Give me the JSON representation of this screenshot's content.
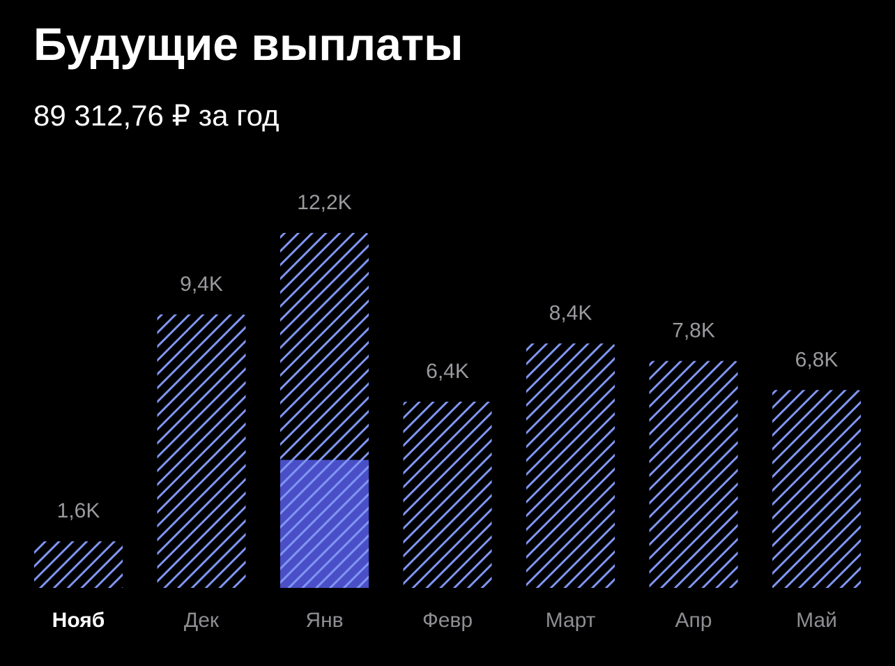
{
  "chart_data": {
    "type": "bar",
    "title": "Будущие выплаты",
    "subtitle": "89 312,76 ₽ за год",
    "categories": [
      "Нояб",
      "Дек",
      "Янв",
      "Февр",
      "Март",
      "Апр",
      "Май"
    ],
    "values": [
      1.6,
      9.4,
      12.2,
      6.4,
      8.4,
      7.8,
      6.8
    ],
    "value_labels": [
      "1,6K",
      "9,4K",
      "12,2K",
      "6,4K",
      "8,4K",
      "7,8K",
      "6,8K"
    ],
    "segments": [
      null,
      null,
      4.4,
      null,
      null,
      null,
      null
    ],
    "color": "#8096f2",
    "segment_color": "#4a4fc8",
    "selected_category": 0
  }
}
